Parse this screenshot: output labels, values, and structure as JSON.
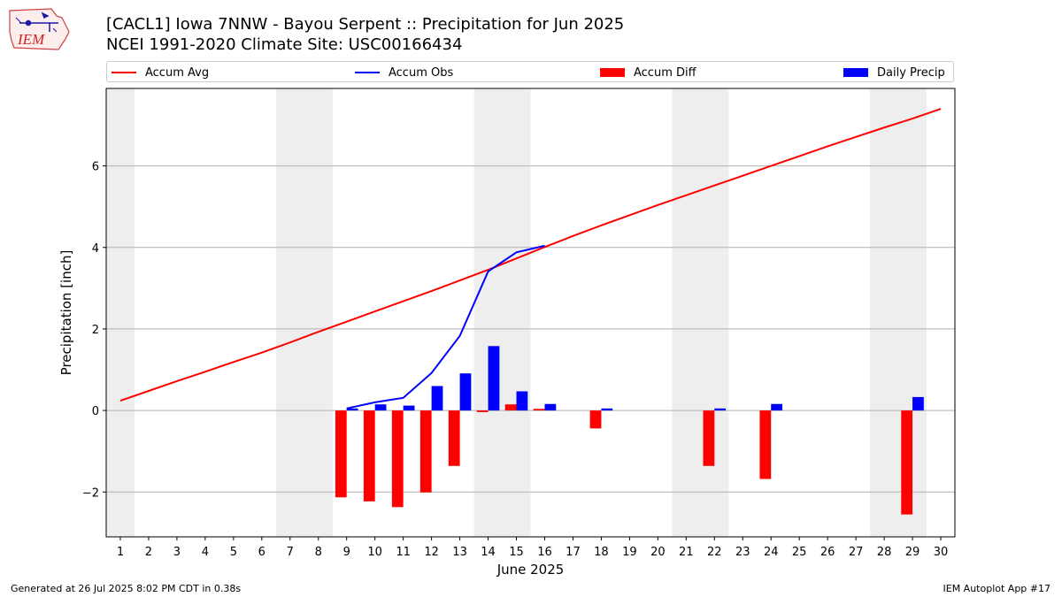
{
  "header": {
    "title_line1": "[CACL1] Iowa 7NNW - Bayou Serpent :: Precipitation for Jun 2025",
    "title_line2": "NCEI 1991-2020 Climate Site: USC00166434",
    "logo_text": "IEM"
  },
  "legend": {
    "accum_avg": "Accum Avg",
    "accum_obs": "Accum Obs",
    "accum_diff": "Accum Diff",
    "daily_precip": "Daily Precip"
  },
  "footer": {
    "generated": "Generated at 26 Jul 2025 8:02 PM CDT in 0.38s",
    "app": "IEM Autoplot App #17"
  },
  "colors": {
    "avg": "#ff0000",
    "obs": "#0000ff",
    "diff": "#ff0000",
    "daily": "#0000ff",
    "weekend": "#eeeeee",
    "grid": "#b0b0b0"
  },
  "chart_data": {
    "type": "bar",
    "title": "[CACL1] Iowa 7NNW - Bayou Serpent :: Precipitation for Jun 2025",
    "subtitle": "NCEI 1991-2020 Climate Site: USC00166434",
    "xlabel": "June 2025",
    "ylabel": "Precipitation [inch]",
    "xlim": [
      0.5,
      30.5
    ],
    "ylim": [
      -3.1,
      7.9
    ],
    "yticks": [
      -2,
      0,
      2,
      4,
      6
    ],
    "ytick_labels": [
      "−2",
      "0",
      "2",
      "4",
      "6"
    ],
    "x": [
      1,
      2,
      3,
      4,
      5,
      6,
      7,
      8,
      9,
      10,
      11,
      12,
      13,
      14,
      15,
      16,
      17,
      18,
      19,
      20,
      21,
      22,
      23,
      24,
      25,
      26,
      27,
      28,
      29,
      30
    ],
    "weekend_spans": [
      [
        0.5,
        1.5
      ],
      [
        6.5,
        8.5
      ],
      [
        13.5,
        15.5
      ],
      [
        20.5,
        22.5
      ],
      [
        27.5,
        29.5
      ]
    ],
    "grid": "horizontal",
    "legend_position": "top",
    "series": [
      {
        "name": "Accum Avg",
        "type": "line",
        "values": [
          0.24,
          0.48,
          0.72,
          0.95,
          1.19,
          1.42,
          1.67,
          1.93,
          2.18,
          2.43,
          2.68,
          2.93,
          3.19,
          3.45,
          3.73,
          4.01,
          4.28,
          4.54,
          4.79,
          5.04,
          5.28,
          5.52,
          5.76,
          6.0,
          6.24,
          6.48,
          6.71,
          6.94,
          7.16,
          7.4
        ]
      },
      {
        "name": "Accum Obs",
        "type": "line",
        "x": [
          9,
          10,
          11,
          12,
          13,
          14,
          15,
          16
        ],
        "values": [
          0.05,
          0.2,
          0.31,
          0.92,
          1.83,
          3.41,
          3.88,
          4.04
        ]
      },
      {
        "name": "Accum Diff",
        "type": "bar",
        "x": [
          9,
          10,
          11,
          12,
          13,
          14,
          15,
          16,
          18,
          22,
          24,
          29
        ],
        "values": [
          -2.13,
          -2.23,
          -2.37,
          -2.01,
          -1.36,
          -0.04,
          0.15,
          0.04,
          -0.44,
          -1.36,
          -1.68,
          -2.55
        ]
      },
      {
        "name": "Daily Precip",
        "type": "bar",
        "x": [
          9,
          10,
          11,
          12,
          13,
          14,
          15,
          16,
          18,
          22,
          24,
          29
        ],
        "values": [
          0.05,
          0.15,
          0.12,
          0.6,
          0.91,
          1.58,
          0.47,
          0.16,
          0.05,
          0.05,
          0.16,
          0.33
        ]
      }
    ]
  }
}
